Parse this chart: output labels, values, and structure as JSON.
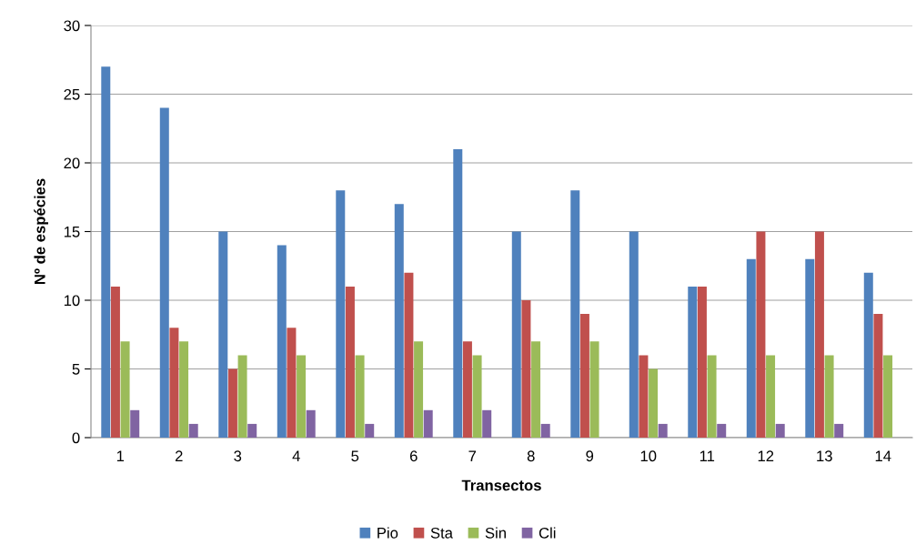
{
  "chart_data": {
    "type": "bar",
    "xlabel": "Transectos",
    "ylabel": "Nº de espécies",
    "categories": [
      "1",
      "2",
      "3",
      "4",
      "5",
      "6",
      "7",
      "8",
      "9",
      "10",
      "11",
      "12",
      "13",
      "14"
    ],
    "series": [
      {
        "name": "Pio",
        "color": "#4f81bd",
        "values": [
          27,
          24,
          15,
          14,
          18,
          17,
          21,
          15,
          18,
          15,
          11,
          13,
          13,
          12
        ]
      },
      {
        "name": "Sta",
        "color": "#c0504d",
        "values": [
          11,
          8,
          5,
          8,
          11,
          12,
          7,
          10,
          9,
          6,
          11,
          15,
          15,
          9
        ]
      },
      {
        "name": "Sin",
        "color": "#9bbb59",
        "values": [
          7,
          7,
          6,
          6,
          6,
          7,
          6,
          7,
          7,
          5,
          6,
          6,
          6,
          6
        ]
      },
      {
        "name": "Cli",
        "color": "#8064a2",
        "values": [
          2,
          1,
          1,
          2,
          1,
          2,
          2,
          1,
          0,
          1,
          1,
          1,
          1,
          0
        ]
      }
    ],
    "ylim": [
      0,
      30
    ],
    "yticks": [
      0,
      5,
      10,
      15,
      20,
      25,
      30
    ],
    "grid": "y",
    "legend": "bottom"
  }
}
